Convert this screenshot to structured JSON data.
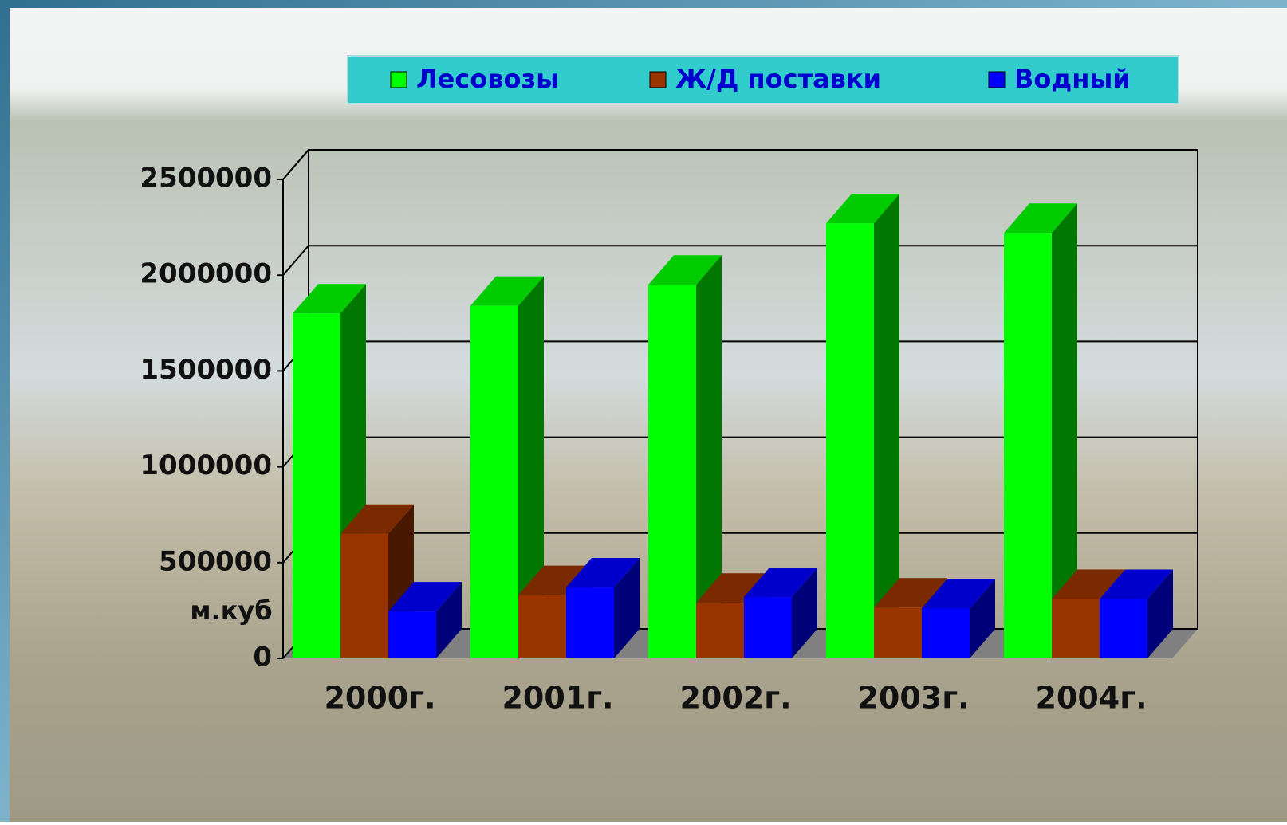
{
  "chart_data": {
    "type": "bar3d",
    "categories": [
      "2000г.",
      "2001г.",
      "2002г.",
      "2003г.",
      "2004г."
    ],
    "series": [
      {
        "name": "Лесовозы",
        "color": "#00ff00",
        "values": [
          1800000,
          1840000,
          1950000,
          2270000,
          2220000
        ]
      },
      {
        "name": "Ж/Д поставки",
        "color": "#993300",
        "values": [
          650000,
          330000,
          290000,
          265000,
          310000
        ]
      },
      {
        "name": "Водный",
        "color": "#0000ff",
        "values": [
          245000,
          370000,
          320000,
          260000,
          310000
        ]
      }
    ],
    "y_label": "м.куб",
    "ylim": [
      0,
      2500000
    ],
    "yticks": [
      0,
      500000,
      1000000,
      1500000,
      2000000,
      2500000
    ],
    "grid": true,
    "legend": "top"
  }
}
